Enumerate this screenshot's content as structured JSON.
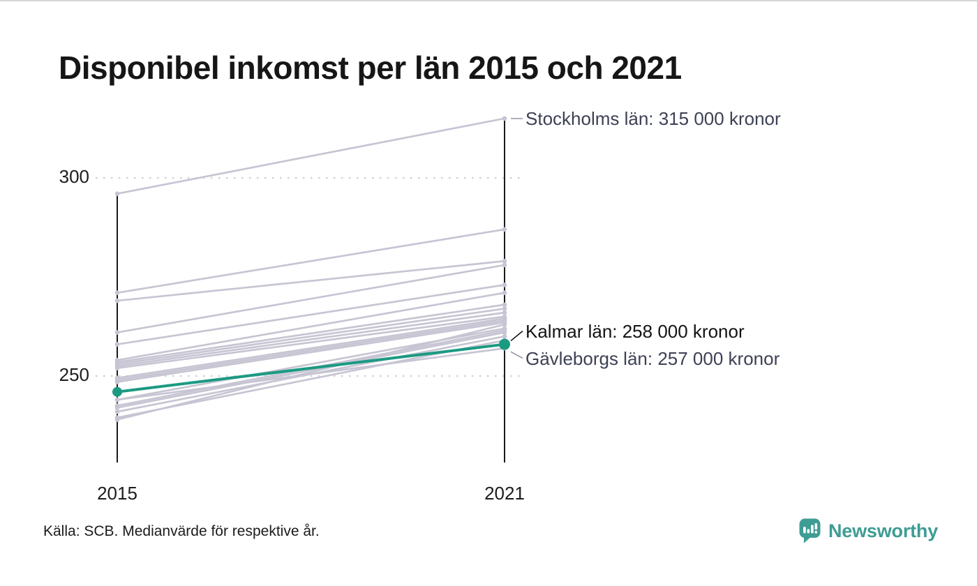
{
  "title": "Disponibel inkomst per län 2015 och 2021",
  "source_note": "Källa: SCB. Medianvärde för respektive år.",
  "branding": {
    "wordmark": "Newsworthy",
    "color": "#3e9c94"
  },
  "colors": {
    "highlight": "#1b9a82",
    "line_gray": "#c7c5d3",
    "axis": "#1a1a1a",
    "grid_dot": "#d1d1d5",
    "leader_gray": "#9b99a9",
    "annotation_gray": "#3d4154",
    "annotation_black": "#141414",
    "brand_teal": "#3e9c94"
  },
  "chart_data": {
    "type": "line",
    "subtype": "slopegraph",
    "title": "Disponibel inkomst per län 2015 och 2021",
    "x_categories": [
      "2015",
      "2021"
    ],
    "y_ticks": [
      300,
      250
    ],
    "ylim": [
      228,
      320
    ],
    "grid": "dotted-horizontal",
    "legend": "none",
    "unit": "000 kronor",
    "series": [
      {
        "name": "Stockholms län",
        "values": [
          296,
          315
        ]
      },
      {
        "values": [
          271,
          287
        ]
      },
      {
        "values": [
          269,
          279
        ]
      },
      {
        "values": [
          261,
          278
        ]
      },
      {
        "values": [
          258,
          273
        ]
      },
      {
        "values": [
          254,
          271
        ]
      },
      {
        "values": [
          253.5,
          268
        ]
      },
      {
        "values": [
          253,
          267
        ]
      },
      {
        "values": [
          252.5,
          266
        ]
      },
      {
        "values": [
          252,
          265
        ]
      },
      {
        "values": [
          249.5,
          264.5
        ]
      },
      {
        "values": [
          249,
          264
        ]
      },
      {
        "values": [
          248.5,
          263.5
        ]
      },
      {
        "name": "Kalmar län",
        "values": [
          246,
          258
        ],
        "highlight": true
      },
      {
        "name": "Gävleborgs län",
        "values": [
          244,
          257
        ]
      },
      {
        "values": [
          244,
          262
        ]
      },
      {
        "values": [
          242.5,
          261.5
        ]
      },
      {
        "values": [
          242,
          261
        ]
      },
      {
        "values": [
          241,
          260
        ]
      },
      {
        "values": [
          239,
          263
        ]
      },
      {
        "values": [
          239.5,
          259
        ]
      }
    ],
    "annotations": [
      {
        "text": "Stockholms län: 315 000 kronor",
        "series": "Stockholms län",
        "emphasis": false
      },
      {
        "text": "Kalmar län: 258 000 kronor",
        "series": "Kalmar län",
        "emphasis": true
      },
      {
        "text": "Gävleborgs län: 257 000 kronor",
        "series": "Gävleborgs län",
        "emphasis": false
      }
    ]
  }
}
